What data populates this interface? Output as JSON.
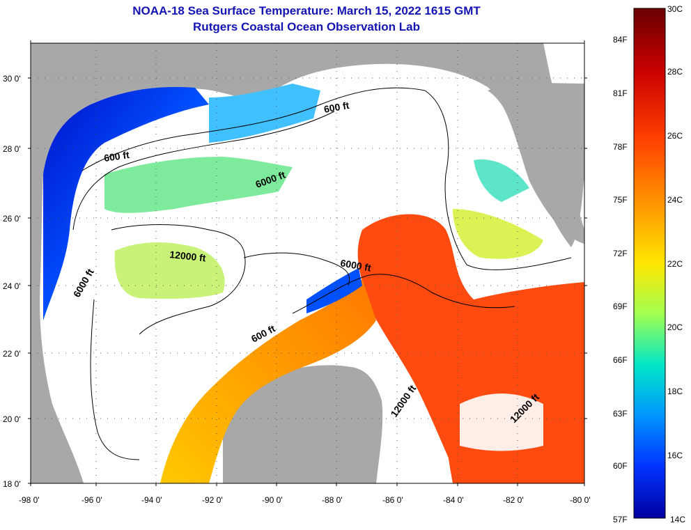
{
  "title_line1": "NOAA-18 Sea Surface Temperature:  March 15, 2022 1615 GMT",
  "title_line2": "Rutgers Coastal Ocean Observation Lab",
  "lat_labels": [
    "30 0'",
    "28 0'",
    "26 0'",
    "24 0'",
    "22 0'",
    "20 0'",
    "18 0'"
  ],
  "lon_labels": [
    "-98 0'",
    "-96 0'",
    "-94 0'",
    "-92 0'",
    "-90 0'",
    "-88 0'",
    "-86 0'",
    "-84 0'",
    "-82 0'",
    "-80 0'"
  ],
  "contour_labels": {
    "c600_a": "600 ft",
    "c600_b": "600 ft",
    "c600_c": "600 ft",
    "c6000_a": "6000 ft",
    "c6000_b": "6000 ft",
    "c6000_c": "6000 ft",
    "c12000_a": "12000 ft",
    "c12000_b": "12000 ft",
    "c12000_c": "12000 ft"
  },
  "colorbar": {
    "celsius_labels": [
      "30C",
      "28C",
      "26C",
      "24C",
      "22C",
      "20C",
      "18C",
      "16C",
      "14C"
    ],
    "fahrenheit_labels": [
      "84F",
      "81F",
      "78F",
      "75F",
      "72F",
      "69F",
      "66F",
      "63F",
      "60F",
      "57F"
    ],
    "colors": [
      "#6a0000",
      "#c80000",
      "#ff3c00",
      "#ff8c00",
      "#ffe600",
      "#a0ff50",
      "#00e6c8",
      "#0096ff",
      "#0032ff",
      "#0000a0"
    ]
  },
  "colors": {
    "land": "#a8a8a8",
    "cloud": "#ffffff"
  }
}
